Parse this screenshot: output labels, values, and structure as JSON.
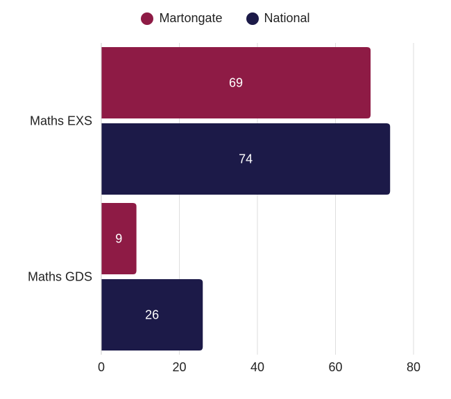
{
  "chart_data": {
    "type": "bar",
    "orientation": "horizontal",
    "categories": [
      "Maths EXS",
      "Maths GDS"
    ],
    "series": [
      {
        "name": "Martongate",
        "color": "#8E1B45",
        "values": [
          69,
          9
        ]
      },
      {
        "name": "National",
        "color": "#1C1A48",
        "values": [
          74,
          26
        ]
      }
    ],
    "xlim": [
      0,
      80
    ],
    "x_ticks": [
      0,
      20,
      40,
      60,
      80
    ],
    "grid": true,
    "legend": "top-center",
    "data_labels": true
  }
}
